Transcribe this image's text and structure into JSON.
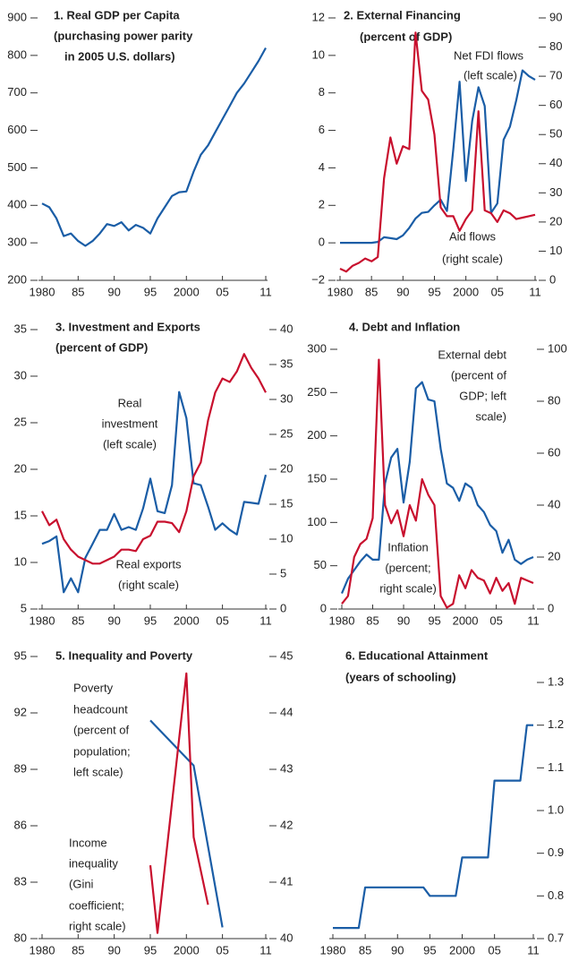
{
  "chart_data": [
    {
      "type": "line",
      "title": [
        "1. Real GDP per Capita",
        "(purchasing power parity",
        "in 2005 U.S. dollars)"
      ],
      "x": [
        1980,
        1981,
        1982,
        1983,
        1984,
        1985,
        1986,
        1987,
        1988,
        1989,
        1990,
        1991,
        1992,
        1993,
        1994,
        1995,
        1996,
        1997,
        1998,
        1999,
        2000,
        2001,
        2002,
        2003,
        2004,
        2005,
        2006,
        2007,
        2008,
        2009,
        2010,
        2011
      ],
      "xlim": [
        1980,
        2011
      ],
      "xticks": [
        1980,
        {
          "value": 1985,
          "label": "85"
        },
        {
          "value": 1990,
          "label": "90"
        },
        {
          "value": 1995,
          "label": "95"
        },
        2000,
        {
          "value": 2005,
          "label": "05"
        },
        {
          "value": 2011,
          "label": "11"
        }
      ],
      "ylim": [
        200,
        900
      ],
      "yticks": [
        200,
        300,
        400,
        500,
        600,
        700,
        800,
        900
      ],
      "series": [
        {
          "color": "#1a5da6",
          "values": [
            405,
            395,
            365,
            318,
            325,
            305,
            292,
            305,
            325,
            350,
            345,
            355,
            333,
            348,
            340,
            325,
            365,
            395,
            425,
            435,
            437,
            490,
            535,
            560,
            595,
            630,
            665,
            700,
            725,
            755,
            785,
            820
          ]
        }
      ]
    },
    {
      "type": "line",
      "title": [
        "2. External Financing",
        "(percent of GDP)"
      ],
      "annotations": [
        "Net FDI flows",
        "(left scale)",
        "Aid flows",
        "(right scale)"
      ],
      "x": [
        1980,
        1981,
        1982,
        1983,
        1984,
        1985,
        1986,
        1987,
        1988,
        1989,
        1990,
        1991,
        1992,
        1993,
        1994,
        1995,
        1996,
        1997,
        1998,
        1999,
        2000,
        2001,
        2002,
        2003,
        2004,
        2005,
        2006,
        2007,
        2008,
        2009,
        2010,
        2011
      ],
      "xlim": [
        1980,
        2011
      ],
      "xticks": [
        1980,
        {
          "value": 1985,
          "label": "85"
        },
        {
          "value": 1990,
          "label": "90"
        },
        {
          "value": 1995,
          "label": "95"
        },
        2000,
        {
          "value": 2005,
          "label": "05"
        },
        {
          "value": 2011,
          "label": "11"
        }
      ],
      "ylim": [
        -2,
        12
      ],
      "yticks": [
        {
          "value": -2,
          "label": "−2"
        },
        0,
        2,
        4,
        6,
        8,
        10,
        12
      ],
      "y2lim": [
        0,
        90
      ],
      "y2ticks": [
        0,
        10,
        20,
        30,
        40,
        50,
        60,
        70,
        80,
        90
      ],
      "series": [
        {
          "color": "#1a5da6",
          "values": [
            0,
            0,
            0,
            0,
            0,
            0,
            0.05,
            0.3,
            0.25,
            0.2,
            0.4,
            0.8,
            1.3,
            1.6,
            1.65,
            2.0,
            2.3,
            1.7,
            5.0,
            8.6,
            3.3,
            6.5,
            8.3,
            7.3,
            1.6,
            2.1,
            5.5,
            6.2,
            7.6,
            9.2,
            8.9,
            8.7
          ]
        },
        {
          "color": "#c8102e",
          "axis": "y2",
          "values": [
            4,
            3,
            5,
            6,
            7.5,
            6.5,
            8,
            35,
            49,
            40,
            46,
            45,
            85,
            65,
            62,
            50,
            25,
            22,
            22,
            17,
            21,
            24,
            58,
            24,
            23,
            20,
            24,
            23,
            21,
            21.5,
            22,
            22.5
          ]
        }
      ]
    },
    {
      "type": "line",
      "title": [
        "3. Investment and Exports",
        "(percent of GDP)"
      ],
      "annotations": [
        "Real",
        "investment",
        "(left scale)",
        "Real exports",
        "(right scale)"
      ],
      "x": [
        1980,
        1981,
        1982,
        1983,
        1984,
        1985,
        1986,
        1987,
        1988,
        1989,
        1990,
        1991,
        1992,
        1993,
        1994,
        1995,
        1996,
        1997,
        1998,
        1999,
        2000,
        2001,
        2002,
        2003,
        2004,
        2005,
        2006,
        2007,
        2008,
        2009,
        2010,
        2011
      ],
      "xlim": [
        1980,
        2011
      ],
      "xticks": [
        1980,
        {
          "value": 1985,
          "label": "85"
        },
        {
          "value": 1990,
          "label": "90"
        },
        {
          "value": 1995,
          "label": "95"
        },
        2000,
        {
          "value": 2005,
          "label": "05"
        },
        {
          "value": 2011,
          "label": "11"
        }
      ],
      "ylim": [
        5,
        35
      ],
      "yticks": [
        5,
        10,
        15,
        20,
        25,
        30,
        35
      ],
      "y2lim": [
        0,
        40
      ],
      "y2ticks": [
        0,
        5,
        10,
        15,
        20,
        25,
        30,
        35,
        40
      ],
      "series": [
        {
          "color": "#1a5da6",
          "values": [
            12,
            12.3,
            12.8,
            6.8,
            8.3,
            6.8,
            10.5,
            12,
            13.5,
            13.5,
            15.2,
            13.5,
            13.8,
            13.5,
            15.8,
            19,
            15.5,
            15.3,
            18.3,
            28.3,
            25.5,
            18.5,
            18.3,
            16,
            13.5,
            14.2,
            13.5,
            13,
            16.5,
            16.4,
            16.3,
            19.4
          ]
        },
        {
          "color": "#c8102e",
          "axis": "y2",
          "values": [
            14,
            12,
            12.8,
            10,
            8.5,
            7.5,
            7,
            6.5,
            6.5,
            7,
            7.5,
            8.5,
            8.5,
            8.3,
            10,
            10.5,
            12.5,
            12.5,
            12.3,
            11,
            14,
            19,
            21,
            27,
            31,
            33,
            32.5,
            34,
            36.5,
            34.5,
            33,
            31
          ]
        }
      ]
    },
    {
      "type": "line",
      "title": [
        "4. Debt and Inflation"
      ],
      "annotations": [
        "External debt",
        "(percent of",
        "GDP; left",
        "scale)",
        "Inflation",
        "(percent;",
        "right scale)"
      ],
      "x": [
        1980,
        1981,
        1982,
        1983,
        1984,
        1985,
        1986,
        1987,
        1988,
        1989,
        1990,
        1991,
        1992,
        1993,
        1994,
        1995,
        1996,
        1997,
        1998,
        1999,
        2000,
        2001,
        2002,
        2003,
        2004,
        2005,
        2006,
        2007,
        2008,
        2009,
        2010,
        2011
      ],
      "xlim": [
        1980,
        2011
      ],
      "xticks": [
        1980,
        {
          "value": 1985,
          "label": "85"
        },
        {
          "value": 1990,
          "label": "90"
        },
        {
          "value": 1995,
          "label": "95"
        },
        2000,
        {
          "value": 2005,
          "label": "05"
        },
        {
          "value": 2011,
          "label": "11"
        }
      ],
      "ylim": [
        0,
        300
      ],
      "yticks": [
        0,
        50,
        100,
        150,
        200,
        250,
        300
      ],
      "y2lim": [
        0,
        100
      ],
      "y2ticks": [
        0,
        20,
        40,
        60,
        80,
        100
      ],
      "series": [
        {
          "color": "#1a5da6",
          "values": [
            18,
            35,
            45,
            55,
            63,
            57,
            57,
            145,
            175,
            185,
            123,
            170,
            255,
            262,
            242,
            240,
            185,
            145,
            140,
            125,
            145,
            140,
            120,
            112,
            97,
            90,
            65,
            80,
            57,
            52,
            57,
            60
          ]
        },
        {
          "color": "#c8102e",
          "axis": "y2",
          "values": [
            2,
            5,
            20,
            25,
            27,
            35,
            96,
            40,
            33,
            38,
            28,
            40,
            34,
            50,
            44,
            40,
            5,
            0.5,
            2,
            13,
            8,
            15,
            12,
            11,
            6,
            12,
            7,
            10,
            2,
            12,
            11,
            10
          ]
        }
      ]
    },
    {
      "type": "line",
      "title": [
        "5. Inequality and Poverty"
      ],
      "annotations": [
        "Poverty",
        "headcount",
        "(percent of",
        "population;",
        "left scale)",
        "Income",
        "inequality",
        "(Gini",
        "coefficient;",
        "right scale)"
      ],
      "xlim": [
        1980,
        2011
      ],
      "xticks": [
        1980,
        {
          "value": 1985,
          "label": "85"
        },
        {
          "value": 1990,
          "label": "90"
        },
        {
          "value": 1995,
          "label": "95"
        },
        2000,
        {
          "value": 2005,
          "label": "05"
        },
        {
          "value": 2011,
          "label": "11"
        }
      ],
      "ylim": [
        80,
        95
      ],
      "yticks": [
        80,
        83,
        86,
        89,
        92,
        95
      ],
      "y2lim": [
        40,
        45
      ],
      "y2ticks": [
        40,
        41,
        42,
        43,
        44,
        45
      ],
      "series": [
        {
          "color": "#1a5da6",
          "x": [
            1995,
            2001,
            2005
          ],
          "values": [
            91.6,
            89.2,
            80.6
          ]
        },
        {
          "color": "#c8102e",
          "axis": "y2",
          "x": [
            1995,
            1996,
            2000,
            2001,
            2003
          ],
          "values": [
            41.3,
            40.1,
            44.7,
            41.8,
            40.6
          ]
        }
      ]
    },
    {
      "type": "line",
      "title": [
        "6. Educational Attainment",
        "(years of schooling)"
      ],
      "x": [
        1980,
        1981,
        1982,
        1983,
        1984,
        1985,
        1986,
        1987,
        1988,
        1989,
        1990,
        1991,
        1992,
        1993,
        1994,
        1995,
        1996,
        1997,
        1998,
        1999,
        2000,
        2001,
        2002,
        2003,
        2004,
        2005,
        2006,
        2007,
        2008,
        2009,
        2010,
        2011
      ],
      "xlim": [
        1980,
        2011
      ],
      "xticks": [
        1980,
        {
          "value": 1985,
          "label": "85"
        },
        {
          "value": 1990,
          "label": "90"
        },
        {
          "value": 1995,
          "label": "95"
        },
        2000,
        {
          "value": 2005,
          "label": "05"
        },
        {
          "value": 2011,
          "label": "11"
        }
      ],
      "y2lim": [
        0.7,
        1.3
      ],
      "y2ticks": [
        0.7,
        0.8,
        0.9,
        {
          "value": 1,
          "label": "1.0"
        },
        1.1,
        1.2,
        1.3
      ],
      "series": [
        {
          "color": "#1a5da6",
          "axis": "y2",
          "values": [
            0.725,
            0.725,
            0.725,
            0.725,
            0.725,
            0.82,
            0.82,
            0.82,
            0.82,
            0.82,
            0.82,
            0.82,
            0.82,
            0.82,
            0.82,
            0.8,
            0.8,
            0.8,
            0.8,
            0.8,
            0.89,
            0.89,
            0.89,
            0.89,
            0.89,
            1.07,
            1.07,
            1.07,
            1.07,
            1.07,
            1.2,
            1.2
          ]
        }
      ]
    }
  ]
}
